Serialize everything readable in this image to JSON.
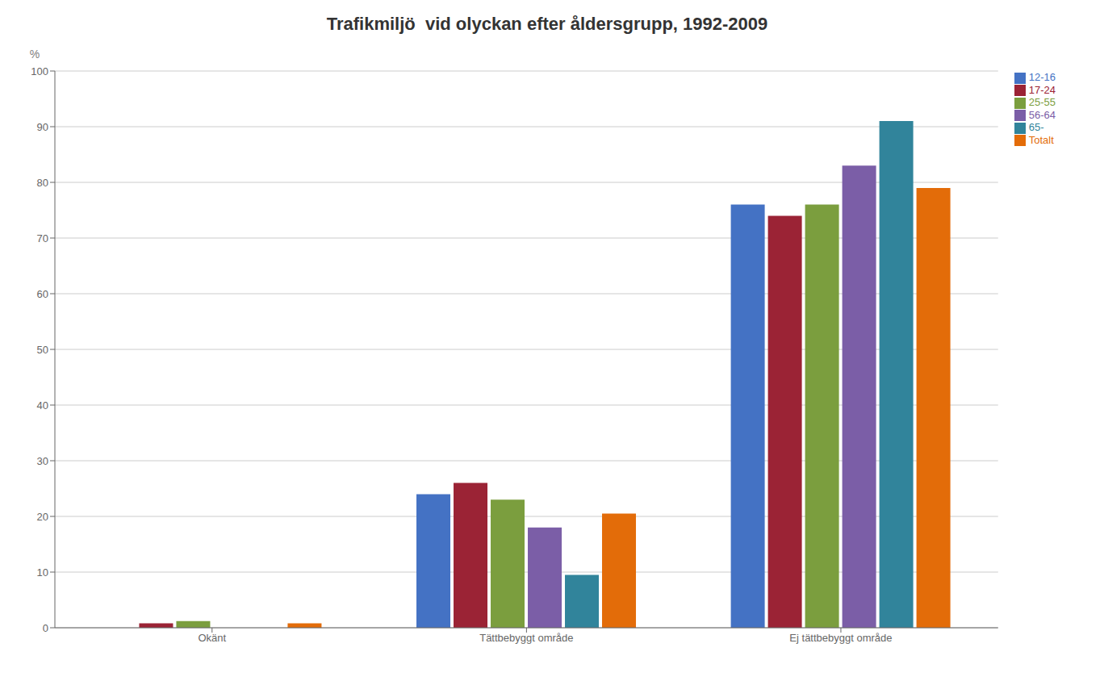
{
  "chart_data": {
    "type": "bar",
    "title": "Trafikmiljö  vid olyckan efter åldersgrupp, 1992-2009",
    "ylabel": "%",
    "categories": [
      "Okänt",
      "Tättbebyggt område",
      "Ej tättbebyggt område"
    ],
    "series": [
      {
        "name": "12-16",
        "color": "#4472C4",
        "values": [
          0,
          24,
          76
        ]
      },
      {
        "name": "17-24",
        "color": "#9B2335",
        "values": [
          0.8,
          26,
          74
        ]
      },
      {
        "name": "25-55",
        "color": "#7B9E3E",
        "values": [
          1.2,
          23,
          76
        ]
      },
      {
        "name": "56-64",
        "color": "#7B5EA7",
        "values": [
          0,
          18,
          83
        ]
      },
      {
        "name": "65-",
        "color": "#31849B",
        "values": [
          0,
          9.5,
          91
        ]
      },
      {
        "name": "Totalt",
        "color": "#E36C09",
        "values": [
          0.8,
          20.5,
          79
        ]
      }
    ],
    "ylim": [
      0,
      100
    ],
    "yticks": [
      0,
      10,
      20,
      30,
      40,
      50,
      60,
      70,
      80,
      90,
      100
    ],
    "grid": true,
    "legend": "upper right"
  }
}
